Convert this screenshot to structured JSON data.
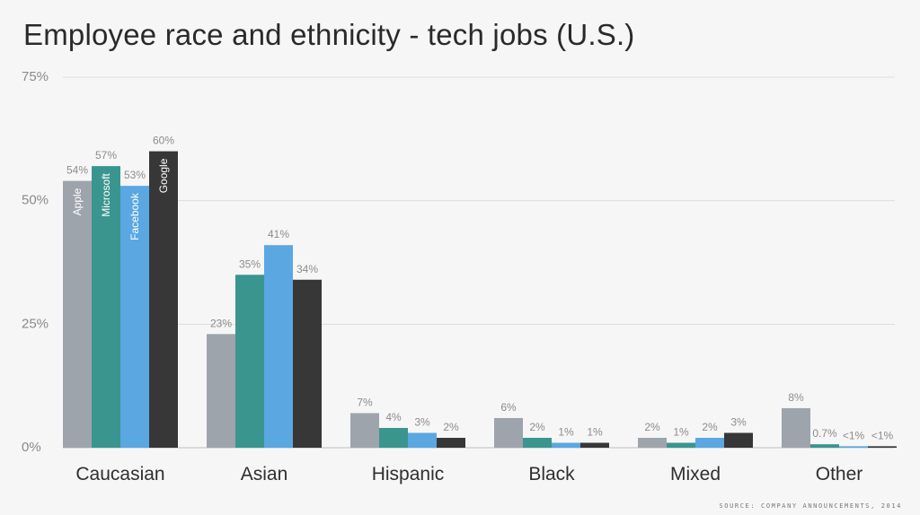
{
  "chart_data": {
    "type": "bar",
    "title": "Employee race and ethnicity - tech jobs (U.S.)",
    "source": "SOURCE: COMPANY ANNOUNCEMENTS, 2014",
    "xlabel": "",
    "ylabel": "",
    "ylim": [
      0,
      75
    ],
    "yticks": [
      0,
      25,
      50,
      75
    ],
    "ytick_labels": [
      "0%",
      "25%",
      "50%",
      "75%"
    ],
    "grid": true,
    "legend": "inline-on-bars",
    "categories": [
      "Caucasian",
      "Asian",
      "Hispanic",
      "Black",
      "Mixed",
      "Other"
    ],
    "series": [
      {
        "name": "Apple",
        "color": "#9ea4ab",
        "values": [
          54,
          23,
          7,
          6,
          2,
          8
        ],
        "labels": [
          "54%",
          "23%",
          "7%",
          "6%",
          "2%",
          "8%"
        ]
      },
      {
        "name": "Microsoft",
        "color": "#3a958f",
        "values": [
          57,
          35,
          4,
          2,
          1,
          0.7
        ],
        "labels": [
          "57%",
          "35%",
          "4%",
          "2%",
          "1%",
          "0.7%"
        ]
      },
      {
        "name": "Facebook",
        "color": "#5aa7e2",
        "values": [
          53,
          41,
          3,
          1,
          2,
          0.3
        ],
        "labels": [
          "53%",
          "41%",
          "3%",
          "1%",
          "2%",
          "<1%"
        ]
      },
      {
        "name": "Google",
        "color": "#373737",
        "values": [
          60,
          34,
          2,
          1,
          3,
          0.3
        ],
        "labels": [
          "60%",
          "34%",
          "2%",
          "1%",
          "3%",
          "<1%"
        ]
      }
    ]
  }
}
